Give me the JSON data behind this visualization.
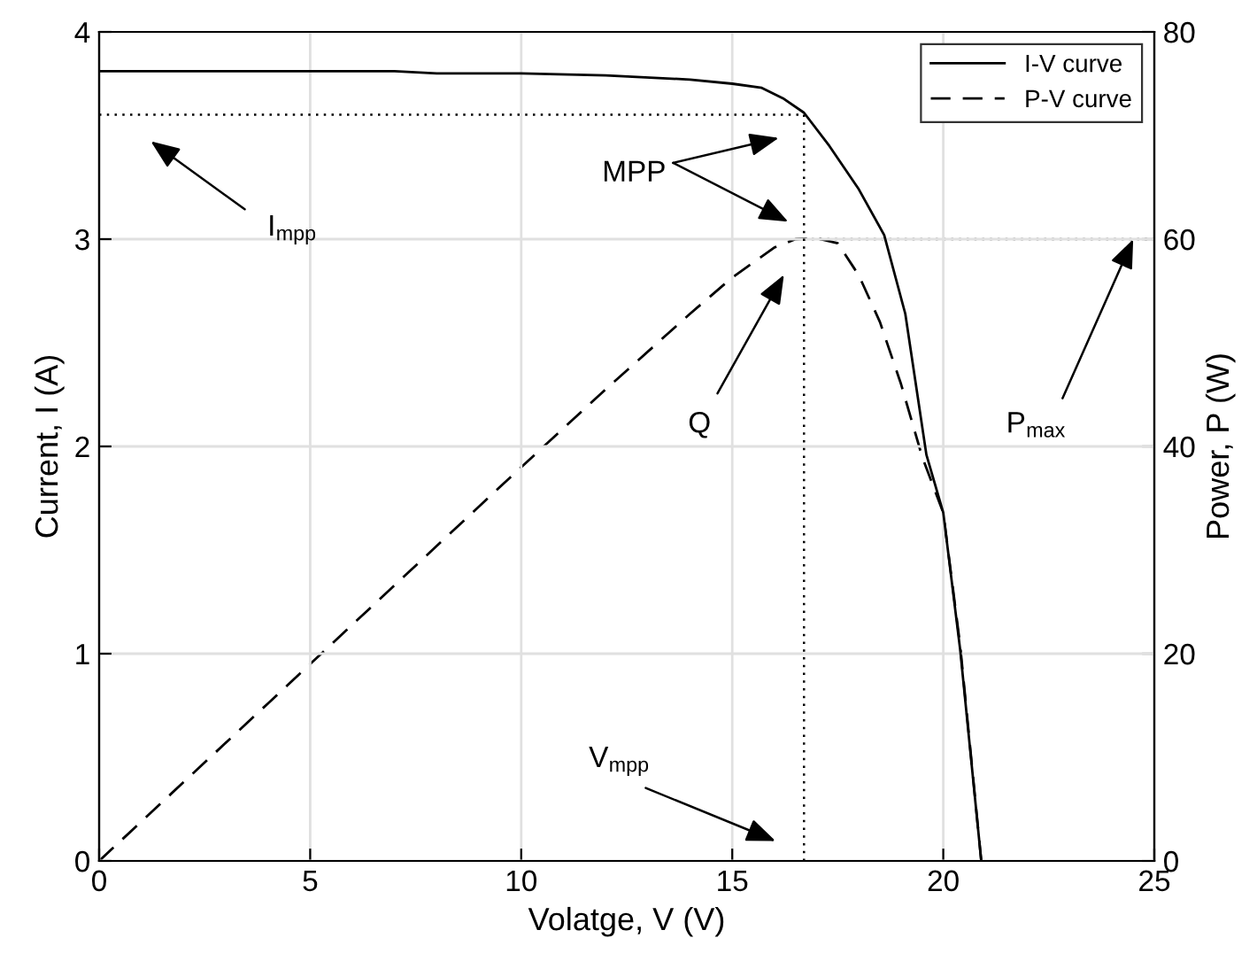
{
  "chart_data": {
    "type": "line",
    "xlabel": "Volatge, V (V)",
    "ylabel": "Current, I (A)",
    "y2label": "Power, P (W)",
    "xlim": [
      0,
      25
    ],
    "xticks": [
      0,
      5,
      10,
      15,
      20,
      25
    ],
    "ylim": [
      0,
      4
    ],
    "yticks": [
      0,
      1,
      2,
      3,
      4
    ],
    "y2lim": [
      0,
      80
    ],
    "y2ticks": [
      0,
      20,
      40,
      60,
      80
    ],
    "grid": true,
    "legend": "top right",
    "series": [
      {
        "name": "I-V curve",
        "color": "#000000",
        "line_style": "solid",
        "x": [
          0,
          5,
          7,
          8,
          10,
          12,
          14,
          15,
          15.7,
          16.2,
          16.7,
          17.3,
          18.0,
          18.6,
          19.1,
          19.6,
          20.0,
          20.4,
          20.9
        ],
        "values": [
          3.81,
          3.81,
          3.81,
          3.8,
          3.8,
          3.79,
          3.77,
          3.75,
          3.73,
          3.68,
          3.61,
          3.45,
          3.24,
          3.02,
          2.64,
          1.96,
          1.68,
          1.02,
          0
        ]
      },
      {
        "name": "P-V curve",
        "color": "#000000",
        "line_style": "dashed",
        "axis": "y2",
        "x": [
          0,
          2,
          4,
          6,
          8,
          10,
          12,
          14,
          15,
          16,
          16.5,
          17,
          17.5,
          18,
          18.5,
          19,
          19.5,
          20,
          20.4,
          20.9
        ],
        "values": [
          0,
          7.6,
          15.2,
          22.8,
          30.4,
          38.0,
          45.5,
          52.8,
          56.3,
          59.2,
          60.0,
          60.1,
          59.6,
          56.5,
          52,
          46,
          39,
          33.6,
          20.8,
          0
        ]
      },
      {
        "color": "#000000",
        "line_style": "dotted",
        "x": [
          0,
          16.7
        ],
        "values": [
          3.6,
          3.6
        ]
      },
      {
        "color": "#000000",
        "line_style": "dotted",
        "x": [
          16.7,
          16.7
        ],
        "values": [
          0,
          3.6
        ]
      },
      {
        "color": "#000000",
        "line_style": "dotted",
        "axis": "y2",
        "x": [
          16.7,
          25
        ],
        "values": [
          60,
          60
        ]
      }
    ],
    "annotations": [
      "I$_{mpp}$",
      "MPP",
      "Q",
      "P$_{max}$",
      "V$_{mpp}$"
    ]
  }
}
